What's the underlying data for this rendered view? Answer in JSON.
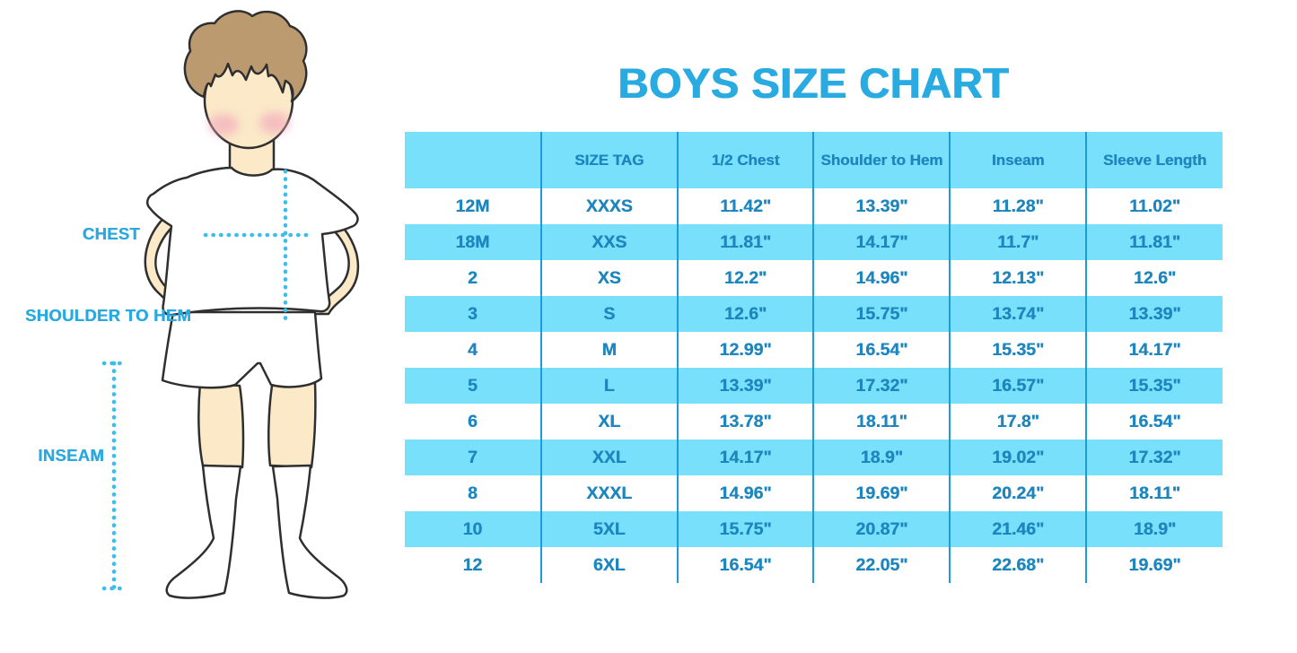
{
  "title": "BOYS SIZE CHART",
  "figure": {
    "labels": {
      "chest": "CHEST",
      "shoulder_hem": "SHOULDER TO HEM",
      "inseam": "INSEAM"
    }
  },
  "chart_data": {
    "type": "table",
    "title": "BOYS SIZE CHART",
    "columns": [
      "",
      "SIZE TAG",
      "1/2 Chest",
      "Shoulder to Hem",
      "Inseam",
      "Sleeve Length"
    ],
    "rows": [
      [
        "12M",
        "XXXS",
        "11.42\"",
        "13.39\"",
        "11.28\"",
        "11.02\""
      ],
      [
        "18M",
        "XXS",
        "11.81\"",
        "14.17\"",
        "11.7\"",
        "11.81\""
      ],
      [
        "2",
        "XS",
        "12.2\"",
        "14.96\"",
        "12.13\"",
        "12.6\""
      ],
      [
        "3",
        "S",
        "12.6\"",
        "15.75\"",
        "13.74\"",
        "13.39\""
      ],
      [
        "4",
        "M",
        "12.99\"",
        "16.54\"",
        "15.35\"",
        "14.17\""
      ],
      [
        "5",
        "L",
        "13.39\"",
        "17.32\"",
        "16.57\"",
        "15.35\""
      ],
      [
        "6",
        "XL",
        "13.78\"",
        "18.11\"",
        "17.8\"",
        "16.54\""
      ],
      [
        "7",
        "XXL",
        "14.17\"",
        "18.9\"",
        "19.02\"",
        "17.32\""
      ],
      [
        "8",
        "XXXL",
        "14.96\"",
        "19.69\"",
        "20.24\"",
        "18.11\""
      ],
      [
        "10",
        "5XL",
        "15.75\"",
        "20.87\"",
        "21.46\"",
        "18.9\""
      ],
      [
        "12",
        "6XL",
        "16.54\"",
        "22.05\"",
        "22.68\"",
        "19.69\""
      ]
    ],
    "layout": {
      "row_striping": "alternating",
      "stripe_rows": "even",
      "gridlines": "vertical-only"
    }
  },
  "colors": {
    "background": "#FFFFFF",
    "title": "#29ABE2",
    "label": "#29A9E0",
    "table_text": "#1E86BE",
    "row_fill": "#79E0FB",
    "divider": "#1E9CD8",
    "dotted_line": "#3BBEEE",
    "skin": "#FBE9C8",
    "hair": "#BC9A70",
    "blush": "#F2A8BC",
    "outline": "#2F2F2F"
  }
}
